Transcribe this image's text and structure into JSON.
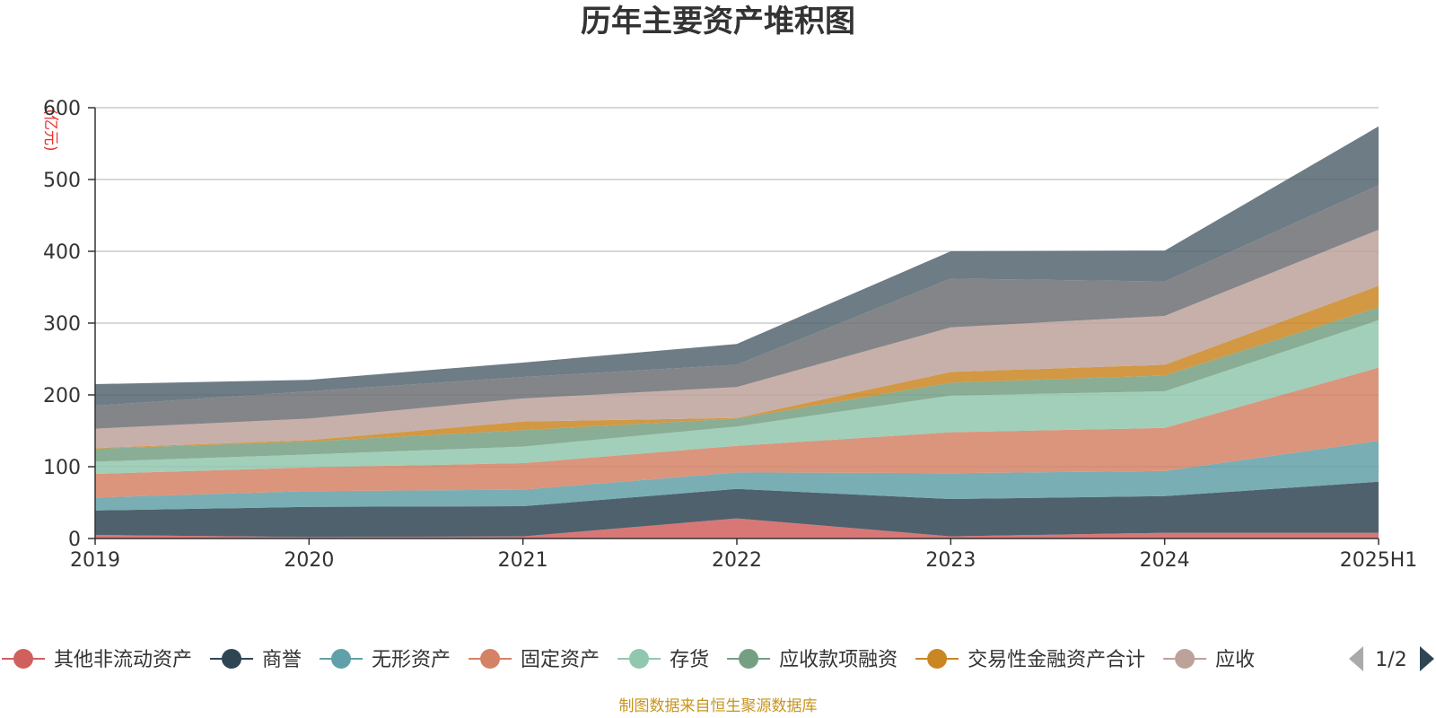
{
  "chart_data": {
    "type": "area",
    "stacked": true,
    "title": "历年主要资产堆积图",
    "unit_label": "(亿元)",
    "x": [
      "2019",
      "2020",
      "2021",
      "2022",
      "2023",
      "2024",
      "2025H1"
    ],
    "ylim": [
      0,
      600
    ],
    "yticks": [
      0,
      100,
      200,
      300,
      400,
      500,
      600
    ],
    "grid": true,
    "series": [
      {
        "name": "其他非流动资产",
        "color": "#d0605e",
        "values": [
          5,
          2,
          3,
          28,
          3,
          8,
          8
        ]
      },
      {
        "name": "商誉",
        "color": "#2f4554",
        "values": [
          34,
          42,
          42,
          41,
          52,
          51,
          71
        ]
      },
      {
        "name": "无形资产",
        "color": "#61a0a8",
        "values": [
          18,
          22,
          23,
          23,
          36,
          35,
          57
        ]
      },
      {
        "name": "固定资产",
        "color": "#d48265",
        "values": [
          33,
          33,
          37,
          37,
          57,
          60,
          102
        ]
      },
      {
        "name": "存货",
        "color": "#91c7ae",
        "values": [
          17,
          18,
          23,
          27,
          51,
          51,
          66
        ]
      },
      {
        "name": "应收款项融资",
        "color": "#749f83",
        "values": [
          18,
          18,
          23,
          11,
          18,
          22,
          18
        ]
      },
      {
        "name": "交易性金融资产合计",
        "color": "#ca8622",
        "values": [
          1,
          2,
          12,
          1,
          15,
          15,
          30
        ]
      },
      {
        "name": "应收",
        "color": "#bda29a",
        "values": [
          27,
          30,
          32,
          43,
          62,
          68,
          78
        ]
      },
      {
        "name": "",
        "color": "#6e7074",
        "values": [
          32,
          38,
          30,
          31,
          68,
          48,
          62
        ]
      },
      {
        "name": "",
        "color": "#546570",
        "values": [
          30,
          16,
          20,
          29,
          38,
          43,
          82
        ]
      }
    ],
    "legend": {
      "position": "bottom",
      "items": [
        "其他非流动资产",
        "商誉",
        "无形资产",
        "固定资产",
        "存货",
        "应收款项融资",
        "交易性金融资产合计",
        "应收"
      ],
      "page": "1/2"
    },
    "source": "制图数据来自恒生聚源数据库"
  }
}
